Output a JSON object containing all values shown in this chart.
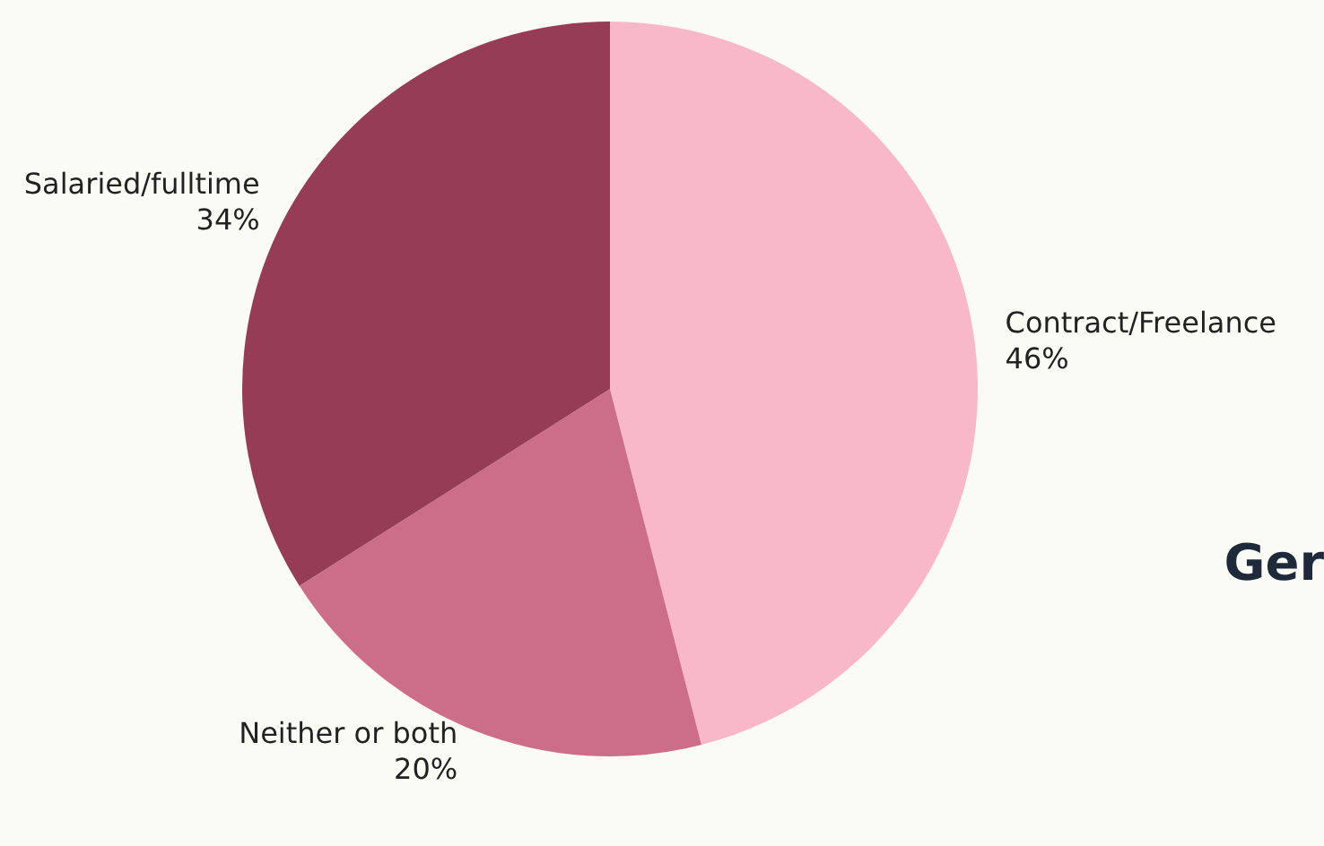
{
  "chart_data": {
    "type": "pie",
    "categories": [
      "Contract/Freelance",
      "Neither or both",
      "Salaried/fulltime"
    ],
    "values": [
      46,
      20,
      34
    ],
    "colors": [
      "#f9b8c8",
      "#cc6e87",
      "#963d55"
    ],
    "annotations": [
      "Ger"
    ],
    "value_labels": [
      "46%",
      "20%",
      "34%"
    ],
    "legend": false
  }
}
